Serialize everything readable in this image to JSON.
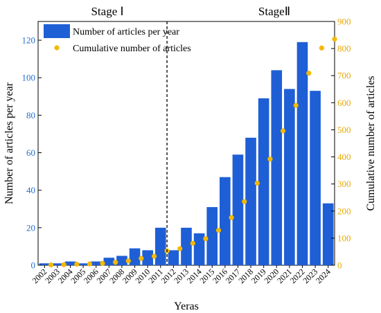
{
  "chart_data": {
    "type": "bar",
    "categories": [
      "2002",
      "2003",
      "2004",
      "2005",
      "2006",
      "2007",
      "2008",
      "2009",
      "2010",
      "2011",
      "2012",
      "2013",
      "2014",
      "2015",
      "2016",
      "2017",
      "2018",
      "2019",
      "2020",
      "2021",
      "2022",
      "2023",
      "2024"
    ],
    "series": [
      {
        "name": "Number of articles per year",
        "type": "bar",
        "axis": "left",
        "color": "#1f5fd6",
        "values": [
          1,
          1,
          2,
          1,
          2,
          4,
          5,
          9,
          8,
          20,
          8,
          20,
          17,
          31,
          47,
          59,
          68,
          89,
          104,
          94,
          119,
          93,
          33
        ]
      },
      {
        "name": "Cumulative number of articles",
        "type": "scatter",
        "axis": "right",
        "color": "#f5b800",
        "values": [
          1,
          2,
          4,
          5,
          7,
          11,
          16,
          25,
          33,
          53,
          61,
          81,
          98,
          129,
          176,
          235,
          303,
          392,
          496,
          590,
          709,
          802,
          835
        ]
      }
    ],
    "xlabel": "Yeras",
    "ylabel": "Number of articles per year",
    "y2label": "Cumulative number of articles",
    "ylim": [
      0,
      130
    ],
    "y2lim": [
      0,
      900
    ],
    "yticks": [
      0,
      20,
      40,
      60,
      80,
      100,
      120
    ],
    "y2ticks": [
      0,
      100,
      200,
      300,
      400,
      500,
      600,
      700,
      800,
      900
    ],
    "stages": [
      {
        "label": "Stage Ⅰ"
      },
      {
        "label": "StageⅡ"
      }
    ],
    "stage_divider_after": "2011",
    "legend_placement": "top-left",
    "grid": false
  }
}
